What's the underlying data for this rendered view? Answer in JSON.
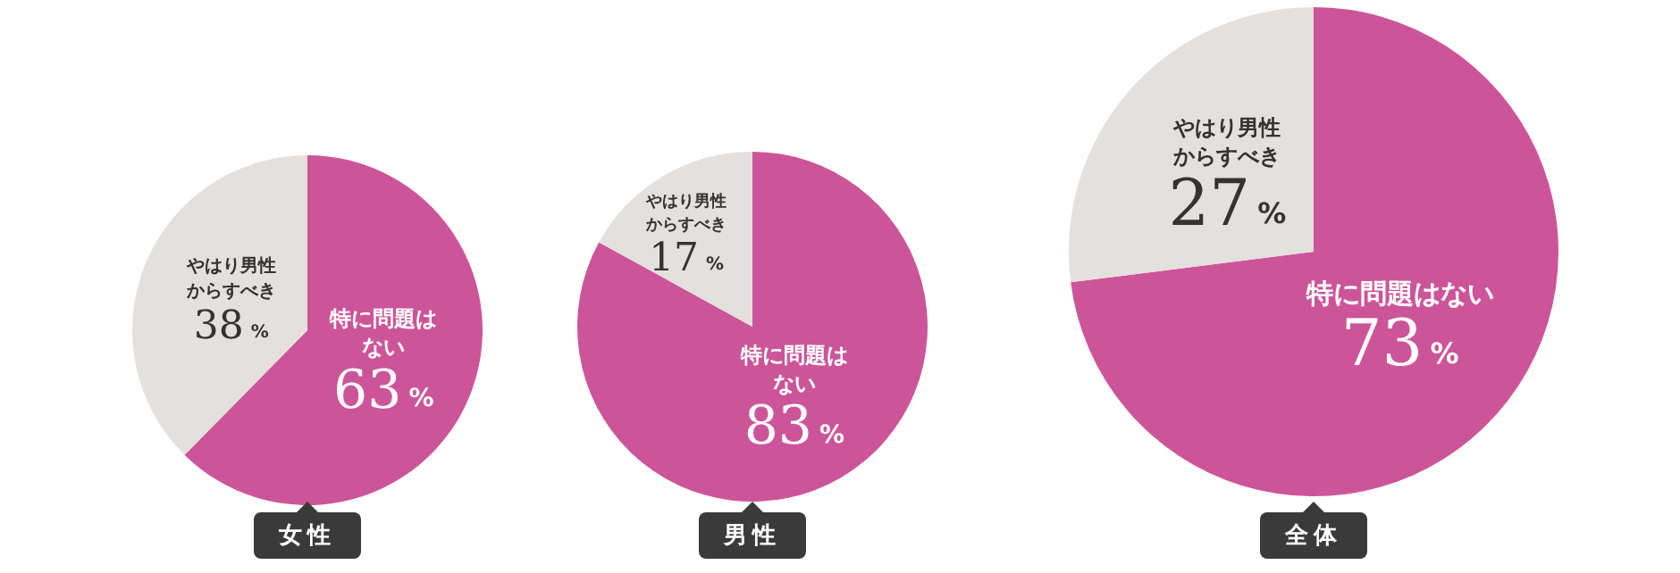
{
  "chart_data": [
    {
      "type": "pie",
      "title": "女性",
      "categories": [
        "特に問題はない",
        "やはり男性からすべき"
      ],
      "values": [
        63,
        38
      ],
      "colors": [
        "#cc5599",
        "#e4e0dd"
      ],
      "value_labels": [
        "63%",
        "38%"
      ],
      "legend": false
    },
    {
      "type": "pie",
      "title": "男性",
      "categories": [
        "特に問題はない",
        "やはり男性からすべき"
      ],
      "values": [
        83,
        17
      ],
      "colors": [
        "#cc5599",
        "#e4e0dd"
      ],
      "value_labels": [
        "83%",
        "17%"
      ],
      "legend": false
    },
    {
      "type": "pie",
      "title": "全体",
      "categories": [
        "特に問題はない",
        "やはり男性からすべき"
      ],
      "values": [
        73,
        27
      ],
      "colors": [
        "#cc5599",
        "#e4e0dd"
      ],
      "value_labels": [
        "73%",
        "27%"
      ],
      "legend": false
    }
  ]
}
